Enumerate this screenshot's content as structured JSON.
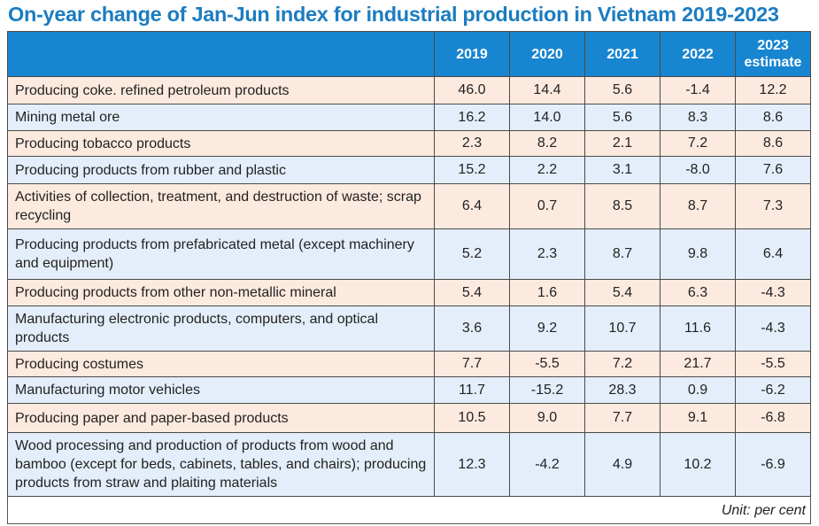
{
  "title": "On-year change of Jan-Jun index for industrial production in Vietnam 2019-2023",
  "unit": "Unit: per cent",
  "colors": {
    "title": "#1c7cc0",
    "header": "#1785d0",
    "row_odd": "#fdeadf",
    "row_even": "#e4eefa"
  },
  "chart_data": {
    "type": "table",
    "title": "On-year change of Jan-Jun index for industrial production in Vietnam 2019-2023",
    "columns": [
      "2019",
      "2020",
      "2021",
      "2022",
      "2023 estimate"
    ],
    "rows": [
      {
        "label": "Producing coke. refined petroleum products",
        "values": [
          "46.0",
          "14.4",
          "5.6",
          "-1.4",
          "12.2"
        ],
        "h": 31
      },
      {
        "label": "Mining metal ore",
        "values": [
          "16.2",
          "14.0",
          "5.6",
          "8.3",
          "8.6"
        ],
        "h": 30
      },
      {
        "label": "Producing tobacco products",
        "values": [
          "2.3",
          "8.2",
          "2.1",
          "7.2",
          "8.6"
        ],
        "h": 29
      },
      {
        "label": "Producing products from rubber and plastic",
        "values": [
          "15.2",
          "2.2",
          "3.1",
          "-8.0",
          "7.6"
        ],
        "h": 31
      },
      {
        "label": "Activities of collection, treatment, and destruction of waste; scrap recycling",
        "values": [
          "6.4",
          "0.7",
          "8.5",
          "8.7",
          "7.3"
        ],
        "h": 51
      },
      {
        "label": "Producing products from prefabricated metal (except machinery and equipment)",
        "values": [
          "5.2",
          "2.3",
          "8.7",
          "9.8",
          "6.4"
        ],
        "h": 57
      },
      {
        "label": "Producing products from other non-metallic mineral",
        "values": [
          "5.4",
          "1.6",
          "5.4",
          "6.3",
          "-4.3"
        ],
        "h": 30
      },
      {
        "label": "Manufacturing electronic products, computers, and optical products",
        "values": [
          "3.6",
          "9.2",
          "10.7",
          "11.6",
          "-4.3"
        ],
        "h": 51
      },
      {
        "label": "Producing costumes",
        "values": [
          "7.7",
          "-5.5",
          "7.2",
          "21.7",
          "-5.5"
        ],
        "h": 29
      },
      {
        "label": "Manufacturing motor vehicles",
        "values": [
          "11.7",
          "-15.2",
          "28.3",
          "0.9",
          "-6.2"
        ],
        "h": 30
      },
      {
        "label": "Producing paper and paper-based products",
        "values": [
          "10.5",
          "9.0",
          "7.7",
          "9.1",
          "-6.8"
        ],
        "h": 33
      },
      {
        "label": "Wood processing and production of products from wood and bamboo (except for beds, cabinets, tables, and chairs); producing products from straw and plaiting materials",
        "values": [
          "12.3",
          "-4.2",
          "4.9",
          "10.2",
          "-6.9"
        ],
        "h": 72
      }
    ]
  }
}
